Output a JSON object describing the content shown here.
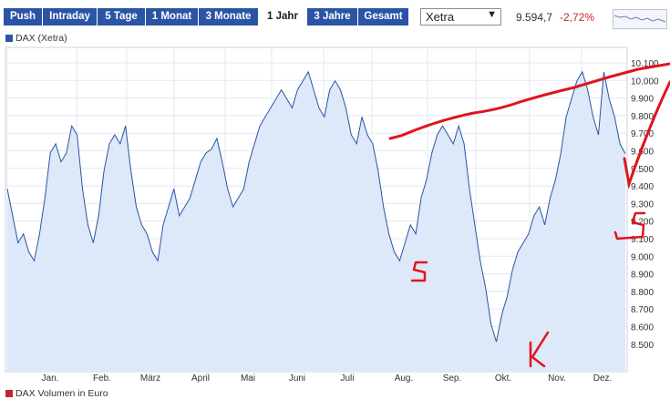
{
  "toolbar": {
    "buttons": [
      {
        "label": "Push",
        "active": false
      },
      {
        "label": "Intraday",
        "active": false
      },
      {
        "label": "5 Tage",
        "active": false
      },
      {
        "label": "1 Monat",
        "active": false
      },
      {
        "label": "3 Monate",
        "active": false
      },
      {
        "label": "1 Jahr",
        "active": true
      },
      {
        "label": "3 Jahre",
        "active": false
      },
      {
        "label": "Gesamt",
        "active": false
      }
    ],
    "exchange": "Xetra",
    "price": "9.594,7",
    "change": "-2,72%"
  },
  "legend": {
    "main": "DAX (Xetra)",
    "volume": "DAX Volumen in Euro"
  },
  "colors": {
    "accent": "#2b54a4",
    "line": "#2b54a4",
    "fill": "#dde8f8",
    "negative": "#c8232c",
    "annotation": "#e0141e"
  },
  "chart_data": {
    "type": "area",
    "title": "",
    "xlabel": "",
    "ylabel": "",
    "ylim": [
      8450,
      10100
    ],
    "grid": true,
    "x_tick_labels": [
      "Jan.",
      "Feb.",
      "März",
      "April",
      "Mai",
      "Juni",
      "Juli",
      "Aug.",
      "Sep.",
      "Okt.",
      "Nov.",
      "Dez."
    ],
    "y_tick_labels": [
      "10.100",
      "10.000",
      "9.900",
      "9.800",
      "9.700",
      "9.600",
      "9.500",
      "9.400",
      "9.300",
      "9.200",
      "9.100",
      "9.000",
      "8.900",
      "8.800",
      "8.700",
      "8.600",
      "8.500"
    ],
    "series": [
      {
        "values": [
          9400,
          9250,
          9100,
          9150,
          9050,
          9000,
          9150,
          9350,
          9600,
          9650,
          9550,
          9600,
          9750,
          9700,
          9400,
          9200,
          9100,
          9250,
          9500,
          9650,
          9700,
          9650,
          9750,
          9500,
          9300,
          9200,
          9150,
          9050,
          9000,
          9200,
          9300,
          9400,
          9250,
          9300,
          9350,
          9450,
          9550,
          9600,
          9620,
          9680,
          9550,
          9400,
          9300,
          9350,
          9400,
          9550,
          9650,
          9750,
          9800,
          9850,
          9900,
          9950,
          9900,
          9850,
          9950,
          10000,
          10050,
          9950,
          9850,
          9800,
          9950,
          10000,
          9950,
          9850,
          9700,
          9650,
          9800,
          9700,
          9650,
          9500,
          9300,
          9150,
          9050,
          9000,
          9100,
          9200,
          9150,
          9350,
          9450,
          9600,
          9700,
          9750,
          9700,
          9650,
          9750,
          9650,
          9400,
          9200,
          9000,
          8850,
          8650,
          8550,
          8700,
          8800,
          8950,
          9050,
          9100,
          9150,
          9250,
          9300,
          9200,
          9350,
          9450,
          9600,
          9800,
          9900,
          10000,
          10050,
          9950,
          9800,
          9700,
          10050,
          9900,
          9800,
          9650,
          9595
        ]
      }
    ]
  }
}
